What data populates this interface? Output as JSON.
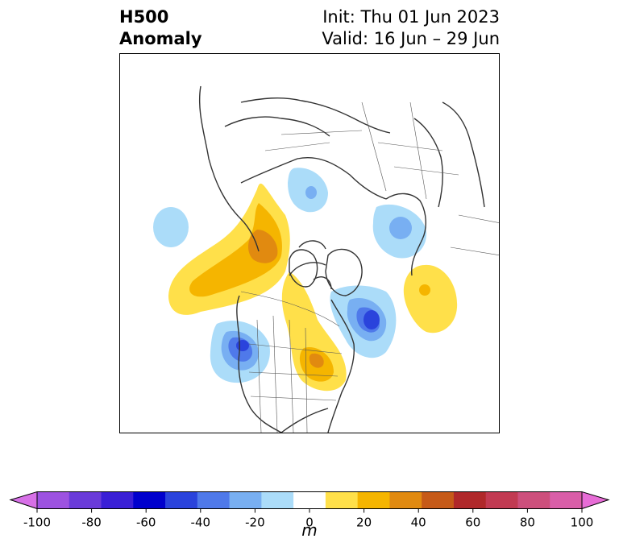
{
  "title": {
    "left_line1": "H500",
    "left_line2": "Anomaly",
    "right_line1": "Init: Thu 01 Jun 2023",
    "right_line2": "Valid: 16 Jun – 29 Jun"
  },
  "colorbar": {
    "unit": "m",
    "tick_labels": [
      "-100",
      "-80",
      "-60",
      "-40",
      "-20",
      "0",
      "20",
      "40",
      "60",
      "80",
      "100"
    ],
    "colors": [
      "#d770e7",
      "#9d52e1",
      "#6a3bd9",
      "#3a1fd6",
      "#0000cd",
      "#2a43dc",
      "#4f79ea",
      "#78aff2",
      "#abdcf9",
      "#ffffff",
      "#ffe04a",
      "#f5b500",
      "#e18a10",
      "#c65a18",
      "#b0282a",
      "#c23a52",
      "#cd4f7c",
      "#d95ea8",
      "#e76cd6"
    ],
    "extend_low": "#d770e7",
    "extend_high": "#e76cd6"
  },
  "anomaly_palette": {
    "neg_light": "#abdcf9",
    "neg_mid": "#78aff2",
    "neg_strong": "#4f79ea",
    "neg_core": "#2a43dc",
    "pos_light": "#ffe04a",
    "pos_mid": "#f5b500",
    "pos_strong": "#e18a10"
  }
}
